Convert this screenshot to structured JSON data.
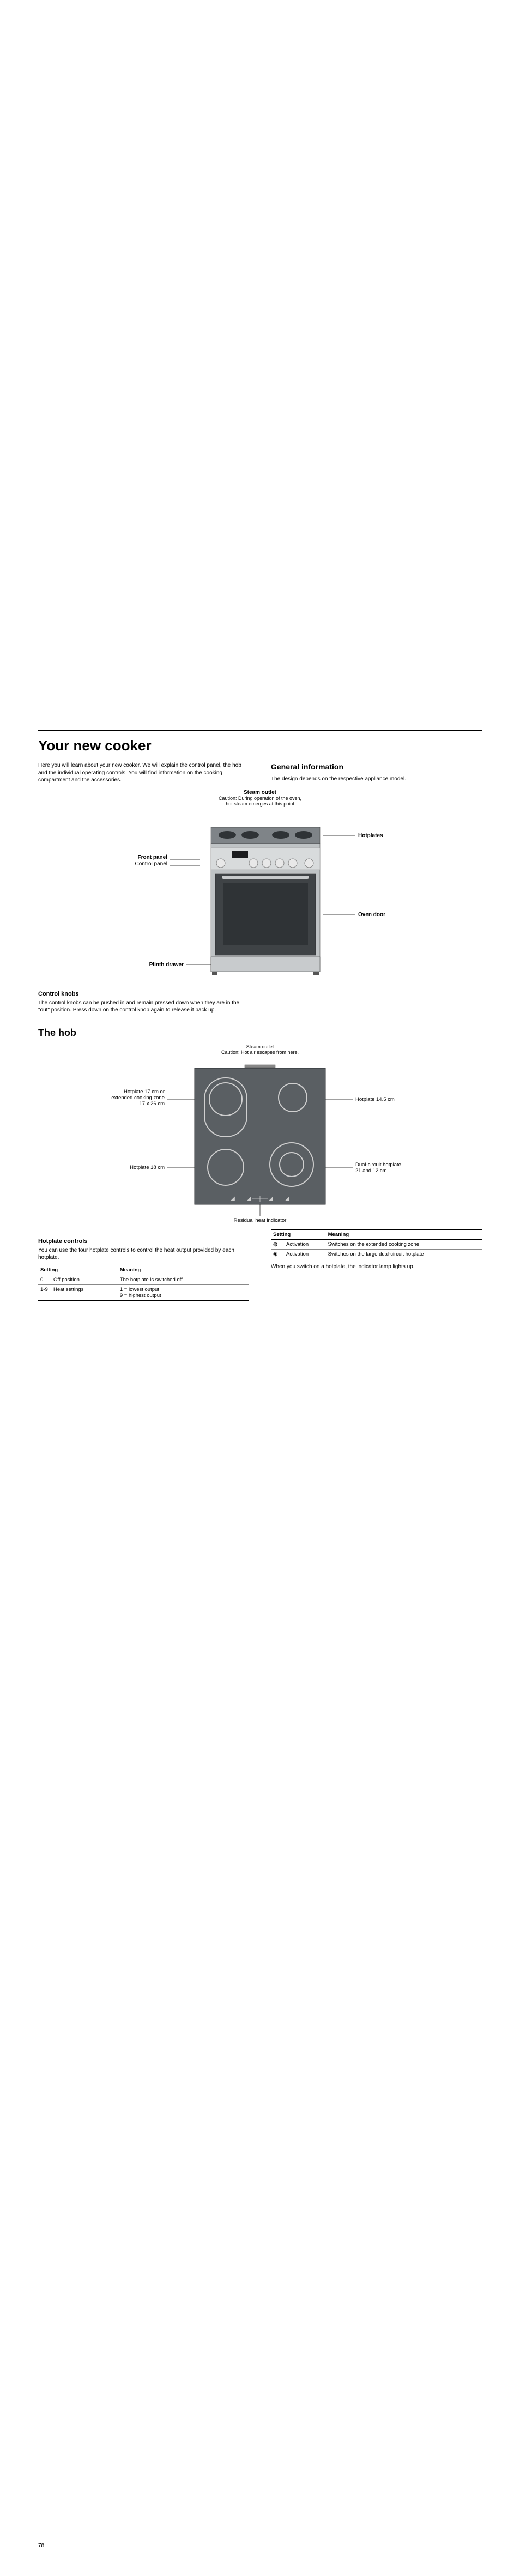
{
  "page_number": "78",
  "title": "Your new cooker",
  "intro_left": "Here you will learn about your new cooker. We will explain the control panel, the hob and the individual operating controls. You will find information on the cooking compartment and the accessories.",
  "general_heading": "General information",
  "general_text": "The design depends on the respective appliance model.",
  "steam_outlet_title": "Steam outlet",
  "steam_outlet_sub": "Caution: During operation of the oven,\nhot steam emerges at this point",
  "cooker_labels": {
    "hotplates": "Hotplates",
    "front_panel": "Front panel",
    "control_panel": "Control panel",
    "oven_door": "Oven door",
    "plinth_drawer": "Plinth drawer"
  },
  "control_knobs_heading": "Control knobs",
  "control_knobs_text": "The control knobs can be pushed in and remain pressed down when they are in the \"out\" position. Press down on the control knob again to release it back up.",
  "hob_heading": "The hob",
  "hob_caption_title": "Steam outlet",
  "hob_caption_sub": "Caution: Hot air escapes from here.",
  "hob_labels": {
    "tl": "Hotplate 17 cm or\nextended cooking zone\n17 x 26 cm",
    "tr": "Hotplate 14.5 cm",
    "bl": "Hotplate 18 cm",
    "br": "Dual-circuit hotplate\n21 and 12 cm",
    "residual": "Residual heat indicator"
  },
  "hotplate_controls_heading": "Hotplate controls",
  "hotplate_controls_intro": "You can use the four hotplate controls to control the heat output provided by each hotplate.",
  "table1": {
    "headers": [
      "Setting",
      "Meaning"
    ],
    "rows": [
      [
        "0",
        "Off position",
        "The hotplate is switched off."
      ],
      [
        "1-9",
        "Heat settings",
        "1 = lowest output\n9 = highest output"
      ]
    ]
  },
  "table2": {
    "headers": [
      "Setting",
      "Meaning"
    ],
    "rows": [
      [
        "◍",
        "Activation",
        "Switches on the extended cooking zone"
      ],
      [
        "◉",
        "Activation",
        "Switches on the large dual-circuit hotplate"
      ]
    ]
  },
  "switch_note": "When you switch on a hotplate, the indicator lamp lights up.",
  "colors": {
    "cooker_body": "#bfc3c5",
    "cooker_dark": "#5f6467",
    "cooker_door": "#3f4346",
    "hob_surface": "#5a5f63",
    "ring": "#d0d0d0"
  }
}
